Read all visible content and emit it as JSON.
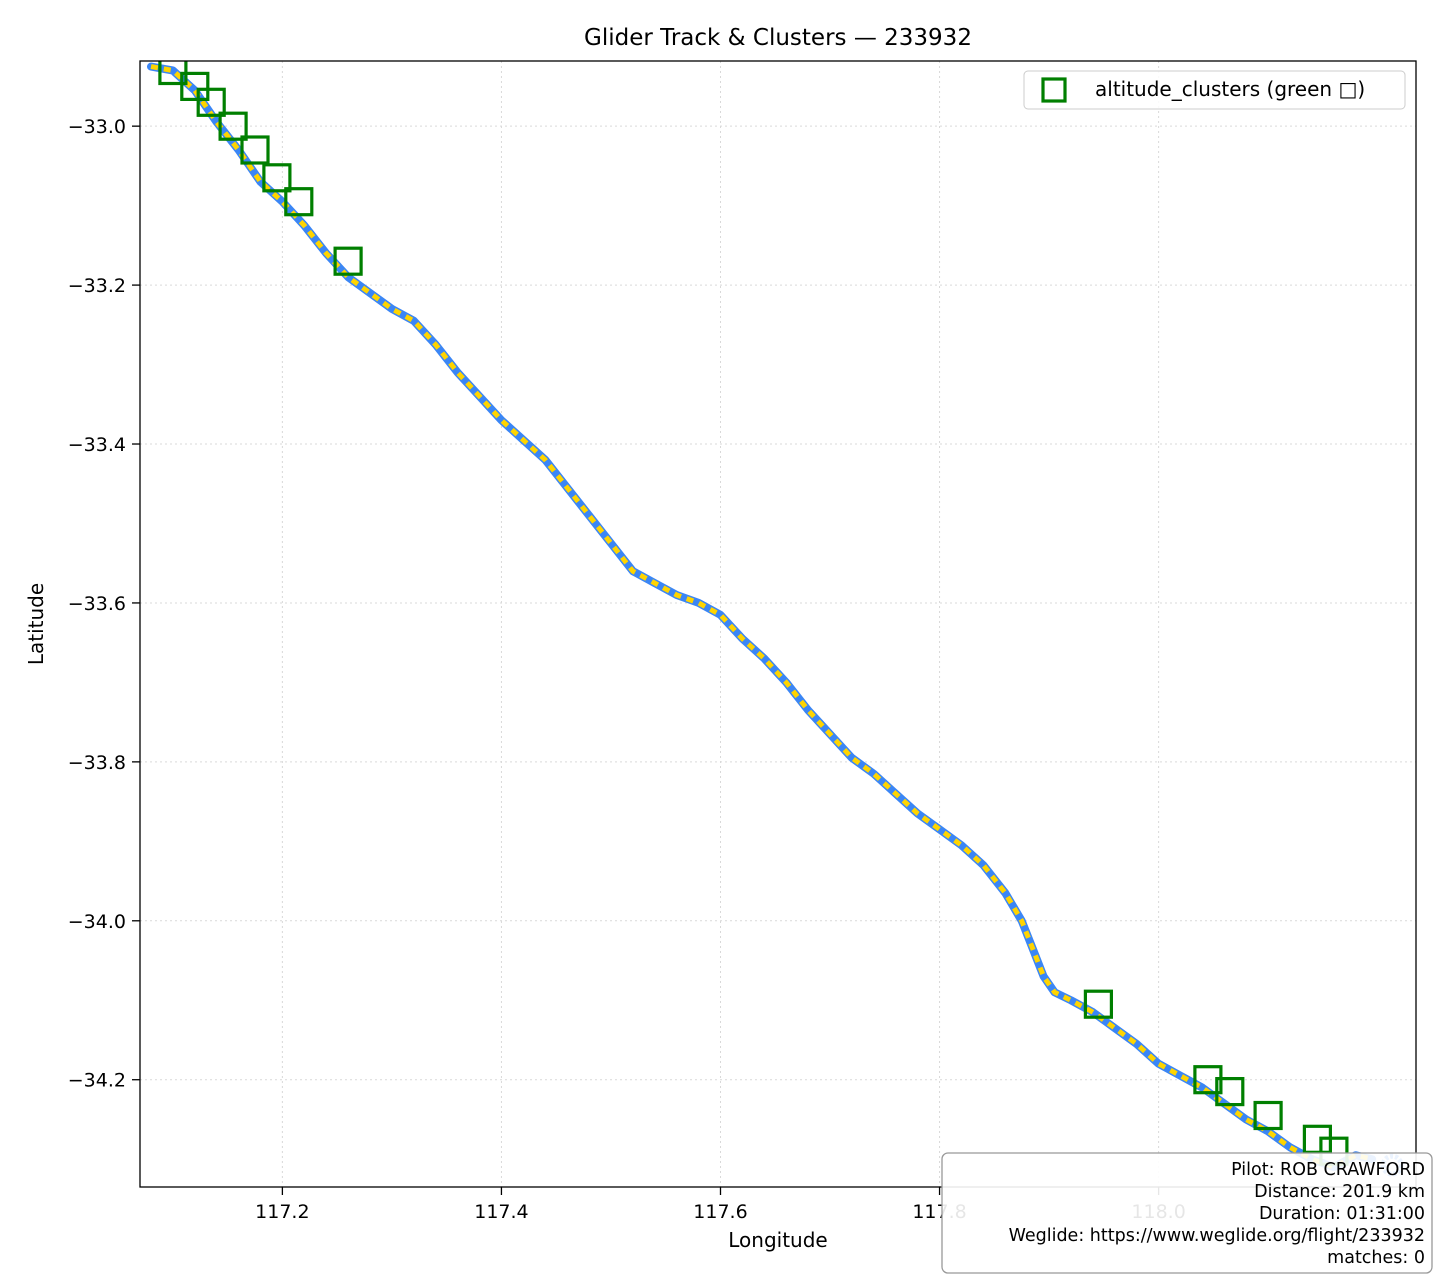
{
  "chart_data": {
    "type": "scatter",
    "title": "Glider Track & Clusters — 233932",
    "xlabel": "Longitude",
    "ylabel": "Latitude",
    "xlim": [
      117.07,
      118.235
    ],
    "ylim": [
      -34.335,
      -32.918
    ],
    "xticks": [
      117.2,
      117.4,
      117.6,
      117.8,
      118.0
    ],
    "xtick_labels": [
      "117.2",
      "117.4",
      "117.6",
      "117.8",
      "118.0"
    ],
    "yticks": [
      -33.0,
      -33.2,
      -33.4,
      -33.6,
      -33.8,
      -34.0,
      -34.2
    ],
    "ytick_labels": [
      "−33.0",
      "−33.2",
      "−33.4",
      "−33.6",
      "−33.8",
      "−34.0",
      "−34.2"
    ],
    "grid": true,
    "legend_position": "top-right",
    "colors": {
      "track": "#3b86f5",
      "track_highlight": "#ffd400",
      "cluster": "#007f00"
    },
    "series": [
      {
        "role": "track",
        "x": [
          117.08,
          117.1,
          117.12,
          117.14,
          117.16,
          117.18,
          117.2,
          117.22,
          117.24,
          117.26,
          117.28,
          117.3,
          117.32,
          117.34,
          117.36,
          117.38,
          117.4,
          117.42,
          117.44,
          117.46,
          117.48,
          117.5,
          117.52,
          117.54,
          117.56,
          117.58,
          117.6,
          117.62,
          117.64,
          117.66,
          117.68,
          117.7,
          117.72,
          117.74,
          117.76,
          117.78,
          117.8,
          117.82,
          117.84,
          117.86,
          117.875,
          117.885,
          117.895,
          117.905,
          117.92,
          117.94,
          117.96,
          117.98,
          118.0,
          118.02,
          118.04,
          118.06,
          118.08,
          118.1,
          118.12,
          118.14,
          118.16,
          118.18,
          118.195
        ],
        "y": [
          -32.925,
          -32.93,
          -32.955,
          -32.995,
          -33.03,
          -33.07,
          -33.095,
          -33.125,
          -33.16,
          -33.19,
          -33.21,
          -33.23,
          -33.245,
          -33.275,
          -33.31,
          -33.34,
          -33.37,
          -33.395,
          -33.42,
          -33.455,
          -33.49,
          -33.525,
          -33.56,
          -33.575,
          -33.59,
          -33.6,
          -33.615,
          -33.645,
          -33.67,
          -33.7,
          -33.735,
          -33.765,
          -33.795,
          -33.815,
          -33.84,
          -33.865,
          -33.885,
          -33.905,
          -33.93,
          -33.965,
          -34.0,
          -34.035,
          -34.07,
          -34.09,
          -34.1,
          -34.115,
          -34.135,
          -34.155,
          -34.18,
          -34.195,
          -34.21,
          -34.23,
          -34.25,
          -34.265,
          -34.285,
          -34.3,
          -34.31,
          -34.295,
          -34.3
        ]
      },
      {
        "role": "clusters",
        "name": "altitude_clusters (green □)",
        "x": [
          117.1,
          117.12,
          117.135,
          117.155,
          117.175,
          117.195,
          117.215,
          117.26,
          117.945,
          118.045,
          118.065,
          118.1,
          118.145,
          118.16
        ],
        "y": [
          -32.93,
          -32.95,
          -32.97,
          -33.0,
          -33.03,
          -33.065,
          -33.095,
          -33.17,
          -34.105,
          -34.2,
          -34.215,
          -34.245,
          -34.275,
          -34.29
        ]
      }
    ],
    "info_box": {
      "pilot": "Pilot: ROB CRAWFORD",
      "distance": "Distance: 201.9 km",
      "duration": "Duration: 01:31:00",
      "weglide": "Weglide: https://www.weglide.org/flight/233932",
      "matches": "matches: 0"
    }
  }
}
